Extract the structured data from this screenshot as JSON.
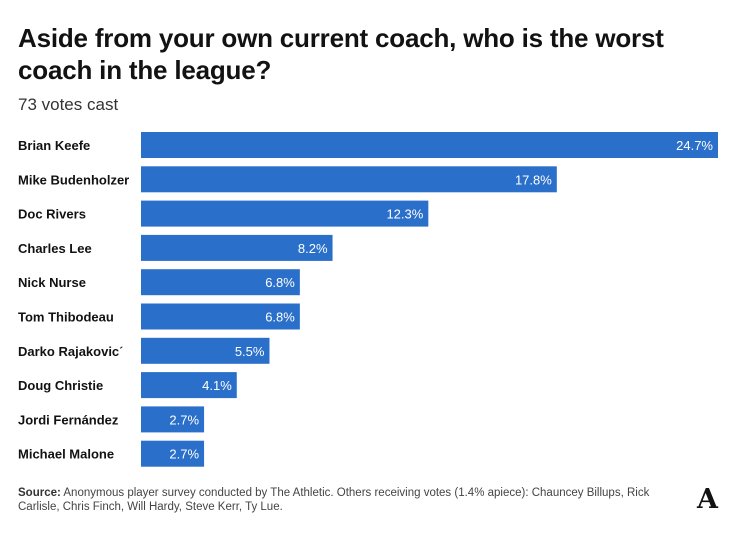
{
  "chart_data": {
    "type": "bar",
    "orientation": "horizontal",
    "title": "Aside from your own current coach, who is the worst coach in the league?",
    "subtitle": "73 votes cast",
    "categories": [
      "Brian Keefe",
      "Mike Budenholzer",
      "Doc Rivers",
      "Charles Lee",
      "Nick Nurse",
      "Tom Thibodeau",
      "Darko Rajakovicˊ",
      "Doug Christie",
      "Jordi Fernández",
      "Michael Malone"
    ],
    "values": [
      24.7,
      17.8,
      12.3,
      8.2,
      6.8,
      6.8,
      5.5,
      4.1,
      2.7,
      2.7
    ],
    "value_labels": [
      "24.7%",
      "17.8%",
      "12.3%",
      "8.2%",
      "6.8%",
      "6.8%",
      "5.5%",
      "4.1%",
      "2.7%",
      "2.7%"
    ],
    "xlim": [
      0,
      24.7
    ],
    "grid": false,
    "legend": "none",
    "bar_color": "#2a6fc9",
    "label_color": "#ffffff"
  },
  "footer": {
    "source_label": "Source:",
    "source_text": "Anonymous player survey conducted by The Athletic. Others receiving votes (1.4% apiece): Chauncey Billups, Rick Carlisle, Chris Finch, Will Hardy, Steve Kerr, Ty Lue."
  },
  "brand": {
    "logo_letter": "A"
  }
}
